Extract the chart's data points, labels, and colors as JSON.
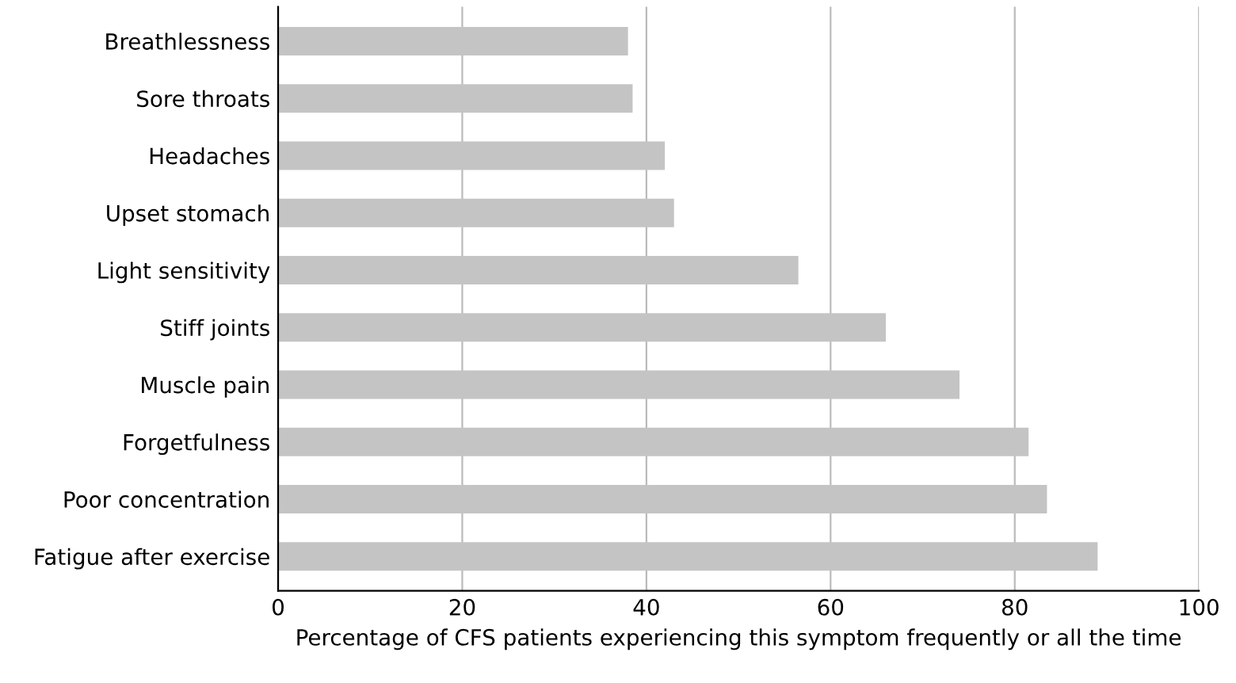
{
  "chart_data": {
    "type": "bar",
    "orientation": "horizontal",
    "categories": [
      "Breathlessness",
      "Sore throats",
      "Headaches",
      "Upset stomach",
      "Light sensitivity",
      "Stiff joints",
      "Muscle pain",
      "Forgetfulness",
      "Poor concentration",
      "Fatigue after exercise"
    ],
    "values": [
      38,
      38.5,
      42,
      43,
      56.5,
      66,
      74,
      81.5,
      83.5,
      89
    ],
    "color": "#c4c4c4",
    "xlabel": "Percentage of CFS patients experiencing this symptom frequently or all the time",
    "xlim": [
      0,
      100
    ],
    "xticks": [
      0,
      20,
      40,
      60,
      80,
      100
    ],
    "grid": "x"
  }
}
